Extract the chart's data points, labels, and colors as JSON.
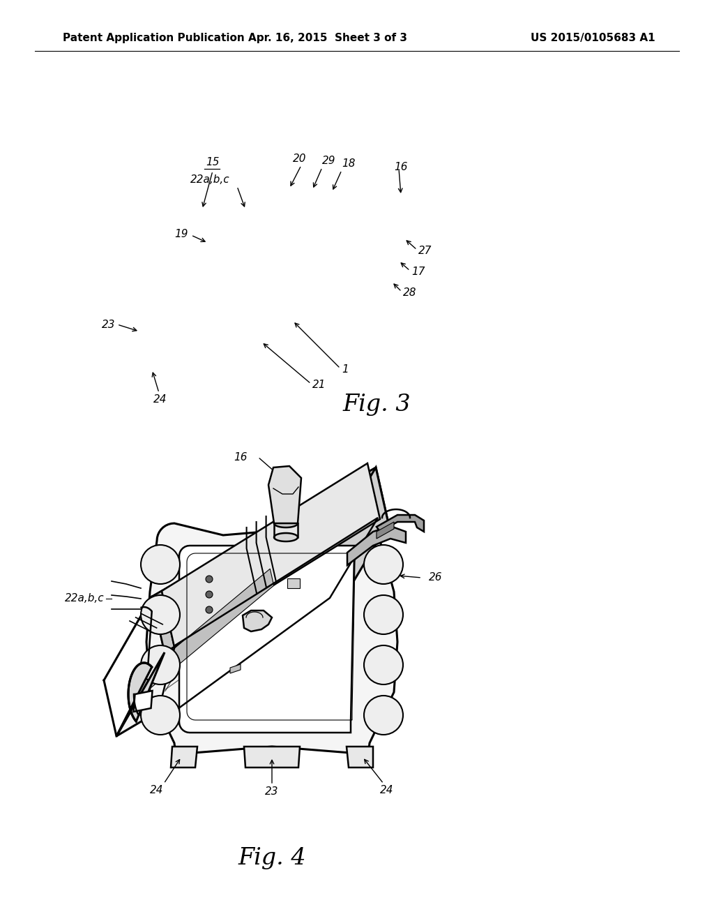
{
  "background_color": "#ffffff",
  "header_left": "Patent Application Publication",
  "header_center": "Apr. 16, 2015  Sheet 3 of 3",
  "header_right": "US 2015/0105683 A1",
  "line_color": "#000000",
  "fig3_label": "Fig. 3",
  "fig4_label": "Fig. 4",
  "ann_fs": 11,
  "fig_label_fs": 24
}
